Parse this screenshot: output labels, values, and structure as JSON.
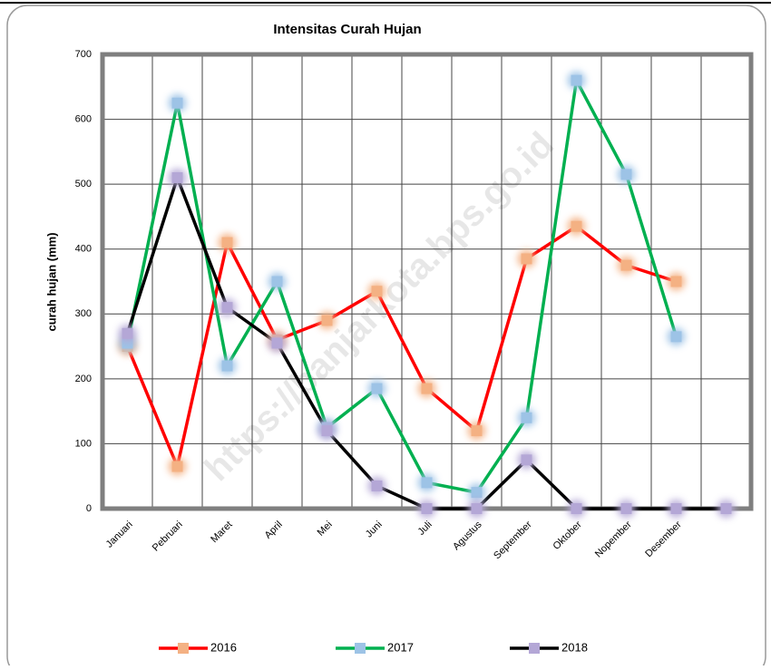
{
  "chart_data": {
    "type": "line",
    "title": "Intensitas Curah Hujan",
    "y_label": "curah hujan (mm)",
    "watermark": "https://banjarkota.bps.go.id",
    "categories": [
      "Januari",
      "Pebruari",
      "Maret",
      "April",
      "Mei",
      "Juni",
      "Juli",
      "Agustus",
      "September",
      "Oktober",
      "Nopember",
      "Desember",
      null
    ],
    "series": [
      {
        "name": "2016",
        "color": "#ff0000",
        "marker_color": "#f4b183",
        "values": [
          250,
          65,
          410,
          260,
          290,
          335,
          185,
          120,
          385,
          435,
          375,
          350,
          null
        ]
      },
      {
        "name": "2017",
        "color": "#00b050",
        "marker_color": "#9dc3e6",
        "values": [
          255,
          625,
          220,
          350,
          125,
          185,
          40,
          25,
          140,
          660,
          515,
          265,
          null
        ]
      },
      {
        "name": "2018",
        "color": "#000000",
        "marker_color": "#b4a7d6",
        "values": [
          270,
          510,
          310,
          255,
          120,
          35,
          0,
          0,
          75,
          0,
          0,
          0,
          0
        ]
      }
    ],
    "ylim": [
      0,
      700
    ],
    "yticks": [
      0,
      100,
      200,
      300,
      400,
      500,
      600,
      700
    ],
    "grid": true,
    "legend": "bottom"
  }
}
